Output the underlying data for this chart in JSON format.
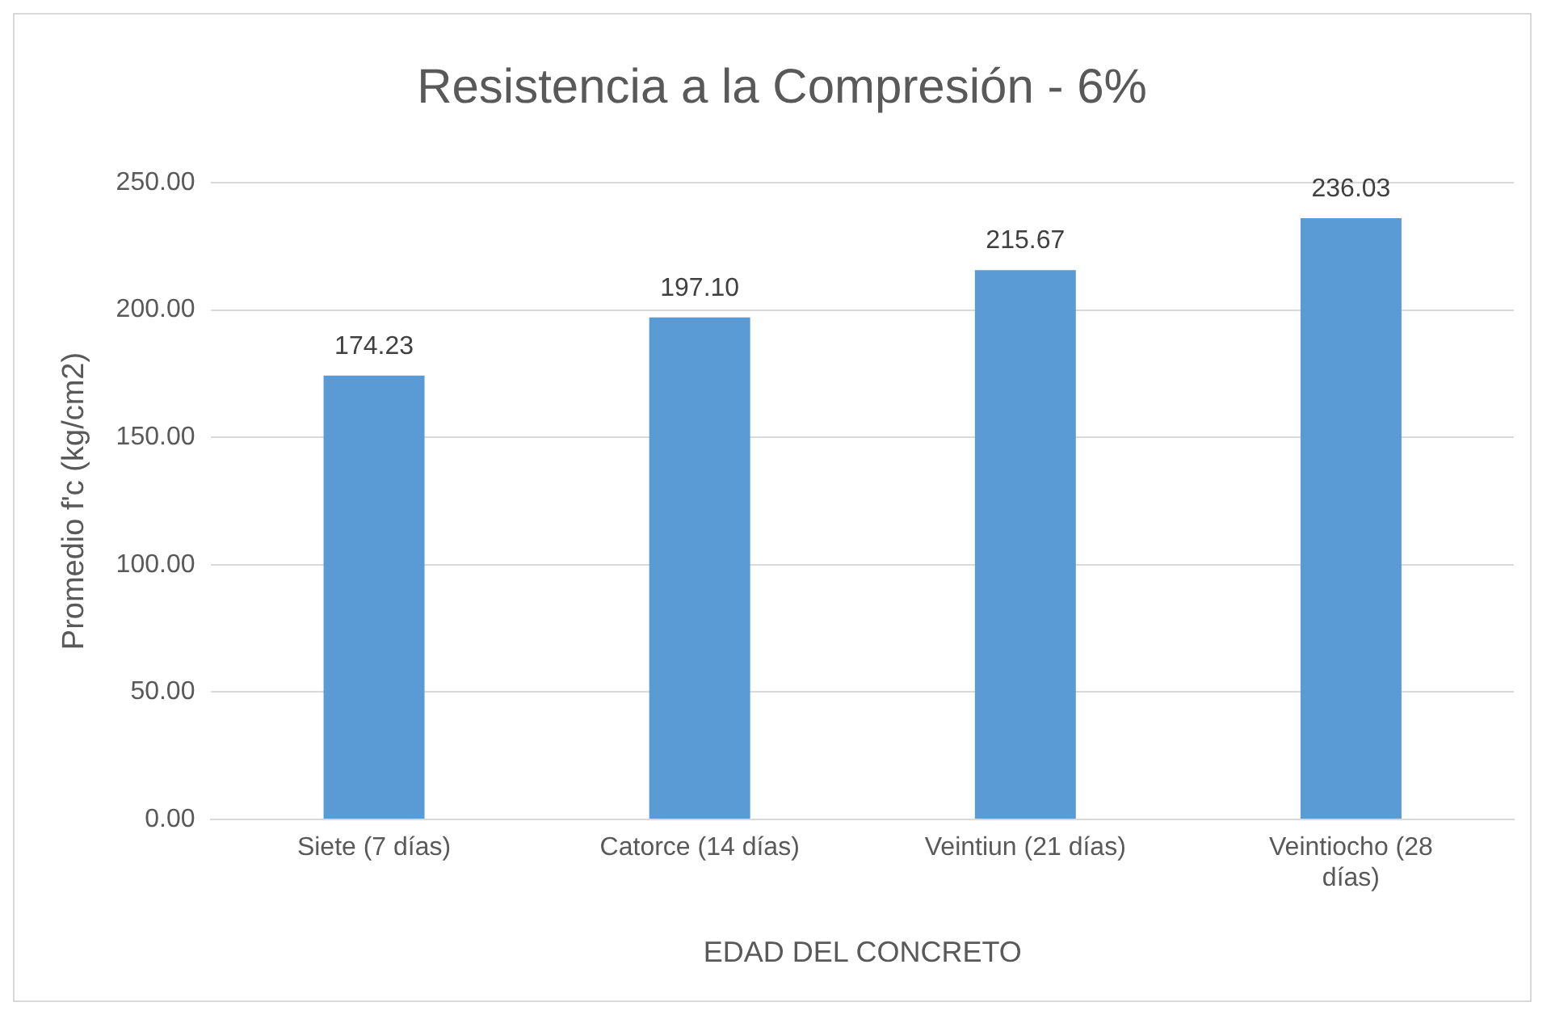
{
  "chart_data": {
    "type": "bar",
    "title": "Resistencia a la Compresión - 6%",
    "xlabel": "EDAD DEL CONCRETO",
    "ylabel": "Promedio f'c (kg/cm2)",
    "categories": [
      "Siete (7 días)",
      "Catorce (14 días)",
      "Veintiun (21 días)",
      "Veintiocho (28 días)"
    ],
    "values": [
      174.23,
      197.1,
      215.67,
      236.03
    ],
    "value_labels": [
      "174.23",
      "197.10",
      "215.67",
      "236.03"
    ],
    "color": "#5b9bd5",
    "ylim": [
      0,
      250
    ],
    "yticks": [
      {
        "value": 0,
        "label": "0.00"
      },
      {
        "value": 50,
        "label": "50.00"
      },
      {
        "value": 100,
        "label": "100.00"
      },
      {
        "value": 150,
        "label": "150.00"
      },
      {
        "value": 200,
        "label": "200.00"
      },
      {
        "value": 250,
        "label": "250.00"
      }
    ],
    "grid": "y",
    "legend": false
  }
}
